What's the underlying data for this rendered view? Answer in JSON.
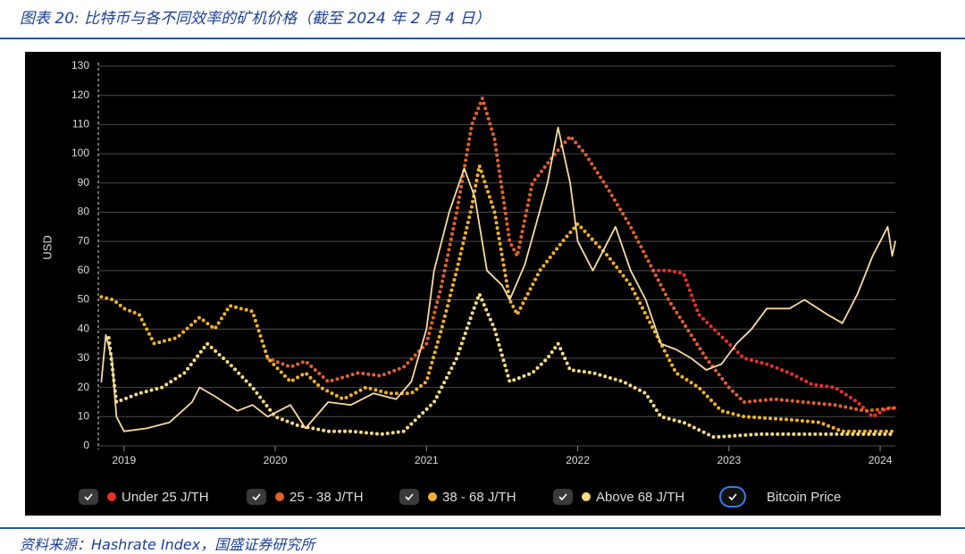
{
  "header": {
    "title": "图表 20: 比特币与各不同效率的矿机价格（截至 2024 年 2 月 4 日）"
  },
  "footer": {
    "source": "资料来源：Hashrate Index，国盛证券研究所"
  },
  "chart_data": {
    "type": "line",
    "y_label": "USD",
    "xlim": [
      2018.83,
      2024.1
    ],
    "xticks": [
      2019,
      2020,
      2021,
      2022,
      2023,
      2024
    ],
    "ylim": [
      0,
      130
    ],
    "yticks": [
      0,
      10,
      20,
      30,
      40,
      50,
      60,
      70,
      80,
      90,
      100,
      110,
      120,
      130
    ],
    "grid": true,
    "legend": "bottom",
    "series": [
      {
        "name": "Under 25 J/TH",
        "color": "#e8302a",
        "line_style": "dotted",
        "x": [
          2022.5,
          2022.6,
          2022.7,
          2022.8,
          2022.9,
          2023.0,
          2023.1,
          2023.25,
          2023.4,
          2023.55,
          2023.7,
          2023.85,
          2023.95,
          2024.05,
          2024.1
        ],
        "values": [
          60,
          60,
          59,
          45,
          40,
          35,
          30,
          28,
          25,
          21,
          20,
          15,
          10,
          13,
          13
        ]
      },
      {
        "name": "25 - 38 J/TH",
        "color": "#e0622c",
        "line_style": "dotted",
        "x": [
          2019.95,
          2020.1,
          2020.2,
          2020.35,
          2020.55,
          2020.7,
          2020.85,
          2021.0,
          2021.1,
          2021.2,
          2021.3,
          2021.37,
          2021.45,
          2021.55,
          2021.6,
          2021.7,
          2021.85,
          2021.95,
          2022.05,
          2022.2,
          2022.35,
          2022.45,
          2022.6,
          2022.75,
          2022.85,
          2023.0,
          2023.1,
          2023.3,
          2023.5,
          2023.7,
          2023.9,
          2024.1
        ],
        "values": [
          30,
          27,
          29,
          22,
          25,
          24,
          27,
          35,
          55,
          80,
          110,
          119,
          105,
          70,
          65,
          90,
          100,
          106,
          100,
          88,
          75,
          65,
          50,
          38,
          30,
          20,
          15,
          16,
          15,
          14,
          12,
          13
        ]
      },
      {
        "name": "38 - 68 J/TH",
        "color": "#f0b12e",
        "line_style": "dotted",
        "x": [
          2018.85,
          2018.93,
          2019.0,
          2019.1,
          2019.2,
          2019.35,
          2019.5,
          2019.6,
          2019.7,
          2019.85,
          2019.95,
          2020.1,
          2020.2,
          2020.3,
          2020.45,
          2020.6,
          2020.75,
          2020.9,
          2021.0,
          2021.1,
          2021.2,
          2021.3,
          2021.35,
          2021.45,
          2021.55,
          2021.6,
          2021.75,
          2021.9,
          2022.0,
          2022.2,
          2022.35,
          2022.5,
          2022.65,
          2022.8,
          2022.95,
          2023.1,
          2023.4,
          2023.6,
          2023.75,
          2024.1
        ],
        "values": [
          51,
          50,
          47,
          45,
          35,
          37,
          44,
          40,
          48,
          46,
          30,
          22,
          25,
          20,
          16,
          20,
          18,
          18,
          22,
          40,
          60,
          82,
          96,
          80,
          50,
          45,
          60,
          70,
          76,
          65,
          55,
          40,
          25,
          20,
          12,
          10,
          9,
          8,
          5,
          5
        ]
      },
      {
        "name": "Above 68 J/TH",
        "color": "#f6dc86",
        "line_style": "dotted",
        "x": [
          2018.9,
          2018.95,
          2019.1,
          2019.25,
          2019.4,
          2019.55,
          2019.7,
          2019.85,
          2020.0,
          2020.15,
          2020.35,
          2020.5,
          2020.7,
          2020.85,
          2020.95,
          2021.05,
          2021.2,
          2021.3,
          2021.35,
          2021.45,
          2021.55,
          2021.7,
          2021.8,
          2021.87,
          2021.95,
          2022.1,
          2022.3,
          2022.45,
          2022.55,
          2022.7,
          2022.9,
          2023.2,
          2023.6,
          2024.1
        ],
        "values": [
          37,
          15,
          18,
          20,
          25,
          35,
          28,
          20,
          10,
          7,
          5,
          5,
          4,
          5,
          10,
          15,
          30,
          45,
          52,
          40,
          22,
          25,
          30,
          35,
          26,
          25,
          22,
          18,
          10,
          8,
          3,
          4,
          4,
          4
        ]
      },
      {
        "name": "Bitcoin Price",
        "color": "#f7dca0",
        "line_style": "solid",
        "x": [
          2018.85,
          2018.88,
          2018.92,
          2018.95,
          2019.0,
          2019.15,
          2019.3,
          2019.45,
          2019.5,
          2019.6,
          2019.75,
          2019.85,
          2019.95,
          2020.1,
          2020.2,
          2020.35,
          2020.5,
          2020.65,
          2020.8,
          2020.9,
          2021.0,
          2021.05,
          2021.15,
          2021.25,
          2021.32,
          2021.4,
          2021.5,
          2021.55,
          2021.65,
          2021.72,
          2021.8,
          2021.87,
          2021.95,
          2022.0,
          2022.1,
          2022.2,
          2022.25,
          2022.35,
          2022.45,
          2022.55,
          2022.65,
          2022.75,
          2022.85,
          2022.95,
          2023.05,
          2023.15,
          2023.25,
          2023.4,
          2023.5,
          2023.65,
          2023.75,
          2023.85,
          2023.95,
          2024.0,
          2024.05,
          2024.08,
          2024.1
        ],
        "values": [
          22,
          38,
          30,
          10,
          5,
          6,
          8,
          15,
          20,
          17,
          12,
          14,
          10,
          14,
          6,
          15,
          14,
          18,
          16,
          22,
          40,
          60,
          80,
          95,
          85,
          60,
          55,
          50,
          62,
          75,
          90,
          109,
          90,
          70,
          60,
          70,
          75,
          60,
          50,
          35,
          33,
          30,
          26,
          28,
          35,
          40,
          47,
          47,
          50,
          45,
          42,
          52,
          65,
          70,
          75,
          65,
          70
        ]
      }
    ]
  }
}
